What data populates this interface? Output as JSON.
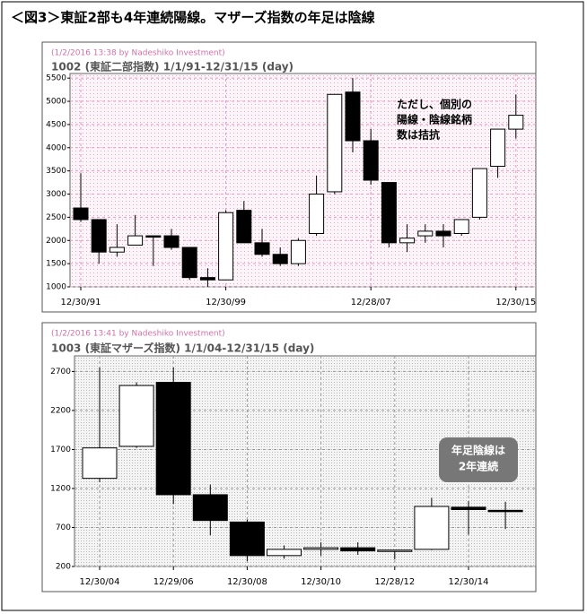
{
  "page_title": "＜図3＞東証2部も4年連続陽線。マザーズ指数の年足は陰線",
  "chart_data": [
    {
      "type": "candlestick",
      "watermark": "(1/2/2016 13:38 by Nadeshiko Investment)",
      "title": "1002 (東証二部指数)  1/1/91-12/31/15 (day)",
      "annotation": [
        "ただし、個別の",
        "陽線・陰線銘柄",
        "数は拮抗"
      ],
      "categories": [
        "12/30/91",
        null,
        null,
        null,
        null,
        null,
        null,
        null,
        "12/30/99",
        null,
        null,
        null,
        null,
        null,
        null,
        null,
        "12/28/07",
        null,
        null,
        null,
        null,
        null,
        null,
        null,
        "12/30/15"
      ],
      "open": [
        2700,
        2450,
        1750,
        1900,
        2100,
        2100,
        1850,
        1200,
        1150,
        2650,
        1950,
        1700,
        1500,
        2150,
        3050,
        5200,
        4150,
        3250,
        1950,
        2100,
        2200,
        2150,
        2500,
        3600,
        4400
      ],
      "high": [
        3450,
        2450,
        2350,
        2550,
        2100,
        2250,
        1850,
        1400,
        2650,
        2850,
        2250,
        1850,
        2050,
        3400,
        5150,
        5500,
        4400,
        3250,
        2350,
        2350,
        2350,
        2450,
        3550,
        4400,
        5150
      ],
      "low": [
        2400,
        1500,
        1650,
        1900,
        1450,
        1800,
        1150,
        1000,
        1150,
        1950,
        1650,
        1450,
        1450,
        2100,
        3000,
        3900,
        3200,
        1850,
        1750,
        1950,
        1850,
        2100,
        2450,
        3350,
        4200
      ],
      "close": [
        2450,
        1750,
        1850,
        2100,
        2080,
        1850,
        1200,
        1150,
        2600,
        1950,
        1700,
        1500,
        2000,
        3000,
        5150,
        4150,
        3300,
        1950,
        2050,
        2200,
        2100,
        2450,
        3550,
        4400,
        4700
      ],
      "ylim": [
        1000,
        5600
      ],
      "yticks": [
        1000,
        1500,
        2000,
        2500,
        3000,
        3500,
        4000,
        4500,
        5000,
        5500
      ],
      "up_color": "#ffffff",
      "down_color": "#000000",
      "grid": true
    },
    {
      "type": "candlestick",
      "watermark": "(1/2/2016 13:41 by Nadeshiko Investment)",
      "title": "1003 (東証マザーズ指数)  1/1/04-12/31/15 (day)",
      "annotation": [
        "年足陰線は",
        "2年連続"
      ],
      "categories": [
        "12/30/04",
        null,
        "12/29/06",
        null,
        "12/30/08",
        null,
        "12/30/10",
        null,
        "12/28/12",
        null,
        "12/30/14",
        null
      ],
      "open": [
        1330,
        1740,
        2560,
        1120,
        770,
        340,
        420,
        440,
        400,
        420,
        960,
        920
      ],
      "high": [
        2750,
        2560,
        2750,
        1250,
        800,
        470,
        510,
        510,
        410,
        1080,
        1040,
        1030
      ],
      "low": [
        1280,
        1720,
        1000,
        600,
        270,
        300,
        340,
        350,
        290,
        410,
        610,
        680
      ],
      "close": [
        1720,
        2520,
        1120,
        790,
        340,
        420,
        440,
        400,
        410,
        970,
        930,
        910
      ],
      "ylim": [
        200,
        2900
      ],
      "yticks": [
        200,
        700,
        1200,
        1700,
        2200,
        2700
      ],
      "up_color": "#ffffff",
      "down_color": "#000000",
      "grid": true
    }
  ]
}
